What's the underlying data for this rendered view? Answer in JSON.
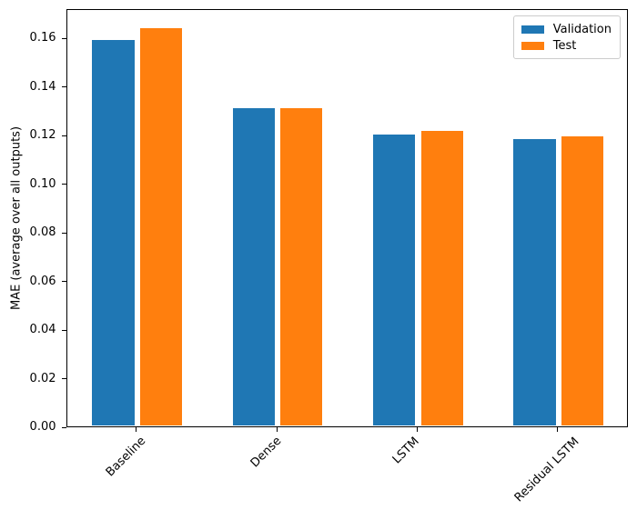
{
  "chart_data": {
    "type": "bar",
    "title": "",
    "categories": [
      "Baseline",
      "Dense",
      "LSTM",
      "Residual LSTM"
    ],
    "series": [
      {
        "name": "Validation",
        "color": "#1f77b4",
        "values": [
          0.1589,
          0.1309,
          0.12,
          0.1183
        ]
      },
      {
        "name": "Test",
        "color": "#ff7f0e",
        "values": [
          0.1638,
          0.131,
          0.1216,
          0.1191
        ]
      }
    ],
    "xlabel": "",
    "ylabel": "MAE (average over all outputs)",
    "ylim": [
      0,
      0.172
    ],
    "xlim": [
      -0.5,
      3.5
    ],
    "yticks": [
      0.0,
      0.02,
      0.04,
      0.06,
      0.08,
      0.1,
      0.12,
      0.14,
      0.16
    ],
    "ytick_labels": [
      "0.00",
      "0.02",
      "0.04",
      "0.06",
      "0.08",
      "0.10",
      "0.12",
      "0.14",
      "0.16"
    ],
    "bar_width": 0.3,
    "bar_offsets": [
      -0.17,
      0.17
    ],
    "xtick_rotation_deg": 45,
    "grid": false,
    "legend": {
      "position": "upper-right",
      "entries": [
        "Validation",
        "Test"
      ]
    },
    "axis_color": "#000000",
    "legend_border_color": "#cccccc"
  }
}
